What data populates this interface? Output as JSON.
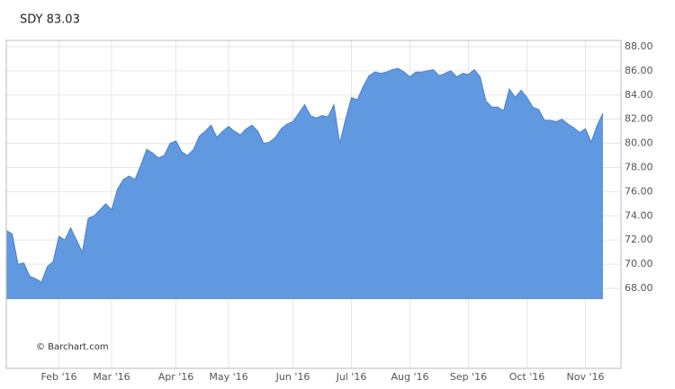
{
  "chart_data": {
    "type": "area",
    "title": "SDY 83.03",
    "credit": "© Barchart.com",
    "color": "#6199e1",
    "line_color": "#4b80cc",
    "categories": [
      null,
      null,
      null,
      null,
      null,
      null,
      null,
      null,
      null,
      "Feb '16",
      null,
      null,
      null,
      null,
      null,
      null,
      null,
      null,
      "Mar '16",
      null,
      null,
      null,
      null,
      null,
      null,
      null,
      null,
      null,
      null,
      "Apr '16",
      null,
      null,
      null,
      null,
      null,
      null,
      null,
      null,
      "May '16",
      null,
      null,
      null,
      null,
      null,
      null,
      null,
      null,
      null,
      null,
      "Jun '16",
      null,
      null,
      null,
      null,
      null,
      null,
      null,
      null,
      null,
      "Jul '16",
      null,
      null,
      null,
      null,
      null,
      null,
      null,
      null,
      null,
      "Aug '16",
      null,
      null,
      null,
      null,
      null,
      null,
      null,
      null,
      null,
      "Sep '16",
      null,
      null,
      null,
      null,
      null,
      null,
      null,
      null,
      null,
      "Oct '16",
      null,
      null,
      null,
      null,
      null,
      null,
      null,
      null,
      null,
      "Nov '16",
      null,
      null,
      null
    ],
    "values": [
      72.8,
      72.5,
      70.0,
      70.1,
      69.0,
      68.8,
      68.5,
      69.8,
      70.2,
      72.3,
      72.0,
      73.0,
      72.0,
      71.0,
      73.8,
      74.0,
      74.5,
      75.0,
      74.5,
      76.2,
      77.0,
      77.3,
      77.0,
      78.2,
      79.5,
      79.2,
      78.8,
      79.0,
      80.0,
      80.2,
      79.3,
      79.0,
      79.5,
      80.6,
      81.0,
      81.5,
      80.5,
      81.0,
      81.4,
      81.0,
      80.7,
      81.2,
      81.5,
      81.0,
      80.0,
      80.1,
      80.5,
      81.2,
      81.6,
      81.8,
      82.5,
      83.2,
      82.3,
      82.1,
      82.3,
      82.2,
      83.2,
      80.0,
      82.0,
      83.8,
      83.6,
      84.7,
      85.6,
      85.9,
      85.8,
      85.9,
      86.1,
      86.2,
      85.9,
      85.5,
      85.9,
      85.9,
      86.0,
      86.1,
      85.6,
      85.8,
      86.0,
      85.5,
      85.8,
      85.7,
      86.1,
      85.5,
      83.5,
      83.0,
      83.0,
      82.7,
      84.5,
      83.8,
      84.4,
      83.8,
      83.0,
      82.8,
      81.9,
      81.9,
      81.8,
      82.0,
      81.6,
      81.3,
      80.9,
      81.2,
      80.1,
      81.5,
      82.5
    ],
    "ylim": [
      61.38,
      88.52
    ],
    "yticks": [
      {
        "value": 68,
        "label": "68.00"
      },
      {
        "value": 70,
        "label": "70.00"
      },
      {
        "value": 72,
        "label": "72.00"
      },
      {
        "value": 74,
        "label": "74.00"
      },
      {
        "value": 76,
        "label": "76.00"
      },
      {
        "value": 78,
        "label": "78.00"
      },
      {
        "value": 80,
        "label": "80.00"
      },
      {
        "value": 82,
        "label": "82.00"
      },
      {
        "value": 84,
        "label": "84.00"
      },
      {
        "value": 86,
        "label": "86.00"
      },
      {
        "value": 88,
        "label": "88.00"
      }
    ],
    "grid": true
  }
}
